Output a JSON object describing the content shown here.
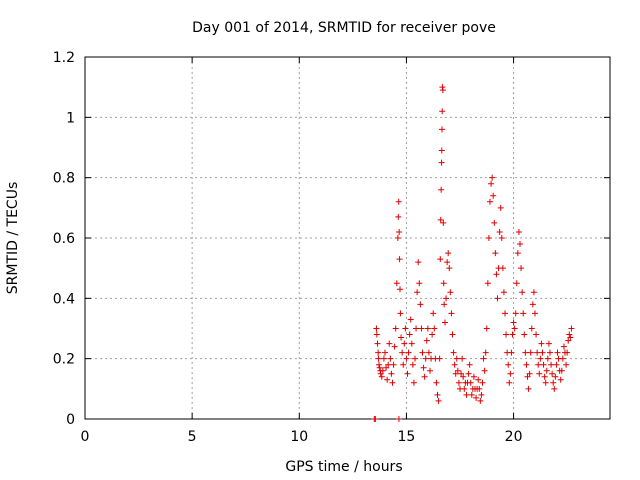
{
  "chart_data": {
    "type": "scatter",
    "title": "Day 001 of 2014, SRMTID for receiver pove",
    "xlabel": "GPS time / hours",
    "ylabel": "SRMTID / TECUs",
    "xlim": [
      0,
      24.5
    ],
    "ylim": [
      0,
      1.2
    ],
    "xticks": [
      0,
      5,
      10,
      15,
      20
    ],
    "yticks": [
      0,
      0.2,
      0.4,
      0.6,
      0.8,
      1,
      1.2
    ],
    "ytick_labels": [
      "0",
      "0.2",
      "0.4",
      "0.6",
      "0.8",
      "1",
      "1.2"
    ],
    "grid": true,
    "marker": "plus",
    "color": "#e00000",
    "series": [
      {
        "points": [
          [
            13.5,
            0.0
          ],
          [
            13.55,
            0.0
          ],
          [
            14.65,
            0.0
          ],
          [
            13.6,
            0.3
          ],
          [
            13.62,
            0.28
          ],
          [
            13.65,
            0.25
          ],
          [
            13.68,
            0.22
          ],
          [
            13.7,
            0.2
          ],
          [
            13.72,
            0.18
          ],
          [
            13.75,
            0.17
          ],
          [
            13.78,
            0.16
          ],
          [
            13.8,
            0.15
          ],
          [
            13.85,
            0.14
          ],
          [
            13.9,
            0.16
          ],
          [
            13.95,
            0.2
          ],
          [
            14.0,
            0.22
          ],
          [
            14.05,
            0.17
          ],
          [
            14.1,
            0.13
          ],
          [
            14.15,
            0.18
          ],
          [
            14.2,
            0.25
          ],
          [
            14.25,
            0.2
          ],
          [
            14.3,
            0.15
          ],
          [
            14.35,
            0.12
          ],
          [
            14.4,
            0.18
          ],
          [
            14.45,
            0.24
          ],
          [
            14.5,
            0.3
          ],
          [
            14.55,
            0.45
          ],
          [
            14.6,
            0.6
          ],
          [
            14.62,
            0.67
          ],
          [
            14.64,
            0.72
          ],
          [
            14.66,
            0.62
          ],
          [
            14.68,
            0.53
          ],
          [
            14.7,
            0.43
          ],
          [
            14.72,
            0.35
          ],
          [
            14.75,
            0.27
          ],
          [
            14.8,
            0.22
          ],
          [
            14.85,
            0.18
          ],
          [
            14.9,
            0.25
          ],
          [
            14.95,
            0.3
          ],
          [
            15.0,
            0.2
          ],
          [
            15.05,
            0.15
          ],
          [
            15.1,
            0.22
          ],
          [
            15.15,
            0.28
          ],
          [
            15.2,
            0.33
          ],
          [
            15.25,
            0.25
          ],
          [
            15.3,
            0.18
          ],
          [
            15.35,
            0.12
          ],
          [
            15.4,
            0.2
          ],
          [
            15.45,
            0.3
          ],
          [
            15.5,
            0.42
          ],
          [
            15.55,
            0.52
          ],
          [
            15.6,
            0.45
          ],
          [
            15.65,
            0.38
          ],
          [
            15.7,
            0.3
          ],
          [
            15.75,
            0.22
          ],
          [
            15.8,
            0.17
          ],
          [
            15.85,
            0.14
          ],
          [
            15.9,
            0.2
          ],
          [
            15.95,
            0.26
          ],
          [
            16.0,
            0.3
          ],
          [
            16.05,
            0.22
          ],
          [
            16.1,
            0.16
          ],
          [
            16.15,
            0.2
          ],
          [
            16.2,
            0.28
          ],
          [
            16.25,
            0.35
          ],
          [
            16.3,
            0.3
          ],
          [
            16.35,
            0.2
          ],
          [
            16.4,
            0.12
          ],
          [
            16.45,
            0.08
          ],
          [
            16.5,
            0.06
          ],
          [
            16.55,
            0.2
          ],
          [
            16.58,
            0.53
          ],
          [
            16.6,
            0.66
          ],
          [
            16.62,
            0.76
          ],
          [
            16.64,
            0.85
          ],
          [
            16.65,
            0.89
          ],
          [
            16.66,
            0.96
          ],
          [
            16.67,
            1.02
          ],
          [
            16.68,
            1.1
          ],
          [
            16.7,
            1.09
          ],
          [
            16.72,
            0.65
          ],
          [
            16.74,
            0.45
          ],
          [
            16.76,
            0.38
          ],
          [
            16.8,
            0.32
          ],
          [
            16.85,
            0.4
          ],
          [
            16.9,
            0.52
          ],
          [
            16.95,
            0.55
          ],
          [
            17.0,
            0.5
          ],
          [
            17.05,
            0.42
          ],
          [
            17.1,
            0.35
          ],
          [
            17.15,
            0.28
          ],
          [
            17.2,
            0.22
          ],
          [
            17.25,
            0.18
          ],
          [
            17.3,
            0.15
          ],
          [
            17.35,
            0.2
          ],
          [
            17.4,
            0.16
          ],
          [
            17.45,
            0.12
          ],
          [
            17.5,
            0.1
          ],
          [
            17.55,
            0.15
          ],
          [
            17.6,
            0.2
          ],
          [
            17.65,
            0.14
          ],
          [
            17.7,
            0.1
          ],
          [
            17.75,
            0.12
          ],
          [
            17.8,
            0.08
          ],
          [
            17.85,
            0.12
          ],
          [
            17.9,
            0.15
          ],
          [
            17.95,
            0.18
          ],
          [
            18.0,
            0.12
          ],
          [
            18.05,
            0.08
          ],
          [
            18.1,
            0.1
          ],
          [
            18.15,
            0.14
          ],
          [
            18.2,
            0.1
          ],
          [
            18.25,
            0.07
          ],
          [
            18.3,
            0.1
          ],
          [
            18.35,
            0.13
          ],
          [
            18.4,
            0.1
          ],
          [
            18.45,
            0.06
          ],
          [
            18.5,
            0.08
          ],
          [
            18.55,
            0.12
          ],
          [
            18.6,
            0.2
          ],
          [
            18.65,
            0.16
          ],
          [
            18.7,
            0.22
          ],
          [
            18.75,
            0.3
          ],
          [
            18.8,
            0.45
          ],
          [
            18.85,
            0.6
          ],
          [
            18.9,
            0.72
          ],
          [
            18.95,
            0.78
          ],
          [
            19.0,
            0.8
          ],
          [
            19.05,
            0.74
          ],
          [
            19.1,
            0.65
          ],
          [
            19.15,
            0.55
          ],
          [
            19.2,
            0.48
          ],
          [
            19.25,
            0.4
          ],
          [
            19.3,
            0.5
          ],
          [
            19.35,
            0.62
          ],
          [
            19.4,
            0.7
          ],
          [
            19.45,
            0.6
          ],
          [
            19.5,
            0.5
          ],
          [
            19.55,
            0.42
          ],
          [
            19.6,
            0.35
          ],
          [
            19.65,
            0.28
          ],
          [
            19.7,
            0.22
          ],
          [
            19.75,
            0.18
          ],
          [
            19.8,
            0.12
          ],
          [
            19.85,
            0.15
          ],
          [
            19.9,
            0.22
          ],
          [
            19.95,
            0.28
          ],
          [
            20.0,
            0.32
          ],
          [
            20.05,
            0.3
          ],
          [
            20.1,
            0.35
          ],
          [
            20.15,
            0.45
          ],
          [
            20.2,
            0.55
          ],
          [
            20.25,
            0.62
          ],
          [
            20.3,
            0.58
          ],
          [
            20.35,
            0.5
          ],
          [
            20.4,
            0.42
          ],
          [
            20.45,
            0.35
          ],
          [
            20.5,
            0.28
          ],
          [
            20.55,
            0.22
          ],
          [
            20.6,
            0.18
          ],
          [
            20.65,
            0.14
          ],
          [
            20.7,
            0.1
          ],
          [
            20.75,
            0.15
          ],
          [
            20.8,
            0.22
          ],
          [
            20.85,
            0.3
          ],
          [
            20.9,
            0.38
          ],
          [
            20.95,
            0.42
          ],
          [
            21.0,
            0.35
          ],
          [
            21.05,
            0.28
          ],
          [
            21.1,
            0.22
          ],
          [
            21.15,
            0.18
          ],
          [
            21.2,
            0.15
          ],
          [
            21.25,
            0.2
          ],
          [
            21.3,
            0.25
          ],
          [
            21.35,
            0.22
          ],
          [
            21.4,
            0.18
          ],
          [
            21.45,
            0.14
          ],
          [
            21.5,
            0.12
          ],
          [
            21.55,
            0.16
          ],
          [
            21.6,
            0.2
          ],
          [
            21.65,
            0.25
          ],
          [
            21.7,
            0.22
          ],
          [
            21.75,
            0.18
          ],
          [
            21.8,
            0.15
          ],
          [
            21.85,
            0.12
          ],
          [
            21.9,
            0.1
          ],
          [
            21.95,
            0.14
          ],
          [
            22.0,
            0.18
          ],
          [
            22.05,
            0.22
          ],
          [
            22.1,
            0.2
          ],
          [
            22.15,
            0.16
          ],
          [
            22.2,
            0.13
          ],
          [
            22.25,
            0.16
          ],
          [
            22.3,
            0.2
          ],
          [
            22.35,
            0.24
          ],
          [
            22.4,
            0.22
          ],
          [
            22.45,
            0.18
          ],
          [
            22.5,
            0.22
          ],
          [
            22.55,
            0.26
          ],
          [
            22.6,
            0.28
          ],
          [
            22.65,
            0.27
          ],
          [
            22.7,
            0.3
          ]
        ]
      }
    ]
  }
}
